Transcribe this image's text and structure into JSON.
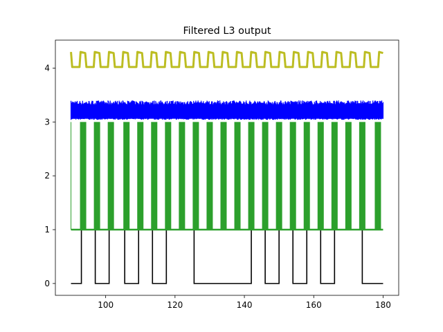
{
  "chart_data": {
    "type": "line",
    "title": "Filtered L3 output",
    "xlabel": "",
    "ylabel": "",
    "xlim": [
      85.5,
      184.5
    ],
    "ylim": [
      -0.22,
      4.52
    ],
    "x_ticks": [
      100,
      120,
      140,
      160,
      180
    ],
    "y_ticks": [
      0,
      1,
      2,
      3,
      4
    ],
    "grid": false,
    "series": [
      {
        "kind": "digital",
        "color": "#000000",
        "low": 0,
        "high": 1,
        "x_range": [
          90,
          180
        ],
        "high_intervals": [
          [
            93,
            97
          ],
          [
            101,
            105.5
          ],
          [
            109.5,
            113.5
          ],
          [
            117.5,
            125.5
          ],
          [
            142,
            146
          ],
          [
            150,
            154
          ],
          [
            158,
            162
          ],
          [
            166,
            174
          ]
        ]
      },
      {
        "kind": "bursts",
        "color": "#2ca02c",
        "baseline": 1,
        "top": 3,
        "x_range": [
          90,
          180
        ],
        "burst_centers": [
          93.5,
          97.5,
          101.5,
          106,
          110,
          114,
          118,
          122,
          126,
          130,
          134,
          138,
          142,
          146,
          150,
          154,
          158,
          162,
          166,
          170,
          174,
          178.5
        ]
      },
      {
        "kind": "noise_band",
        "color": "#0000ff",
        "low": 3.04,
        "high": 3.4,
        "x_range": [
          90,
          180
        ]
      },
      {
        "kind": "square_wave",
        "color": "#bcbd22",
        "low": 4.02,
        "high": 4.3,
        "x_range": [
          90,
          180
        ],
        "period": 4.1
      }
    ]
  }
}
